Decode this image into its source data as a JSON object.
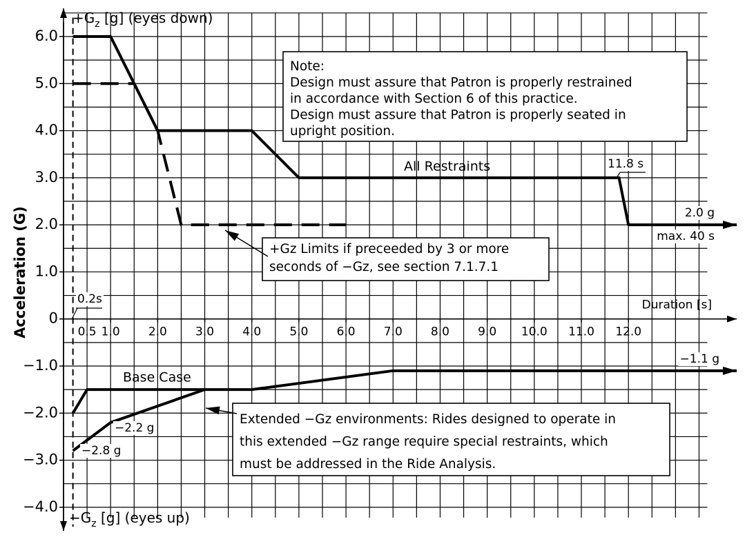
{
  "chart_data": {
    "type": "line",
    "y_label": "Acceleration (G)",
    "y_top_label": {
      "main": "+G",
      "sub": "z",
      "rest": " [g] (eyes down)"
    },
    "y_bottom_label": {
      "main": "−G",
      "sub": "z",
      "rest": " [g] (eyes up)"
    },
    "x_label": "Duration [s]",
    "xlim": [
      0,
      14.3
    ],
    "ylim": [
      -4.5,
      6.6
    ],
    "xticks": [
      0.5,
      {
        "value": 1,
        "label": "1.0"
      },
      {
        "value": 2,
        "label": "2.0"
      },
      {
        "value": 3,
        "label": "3.0"
      },
      {
        "value": 4,
        "label": "4.0"
      },
      {
        "value": 5,
        "label": "5.0"
      },
      {
        "value": 6,
        "label": "6.0"
      },
      {
        "value": 7,
        "label": "7.0"
      },
      {
        "value": 8,
        "label": "8.0"
      },
      {
        "value": 9,
        "label": "9.0"
      },
      {
        "value": 10,
        "label": "10.0"
      },
      {
        "value": 11,
        "label": "11.0"
      },
      {
        "value": 12,
        "label": "12.0"
      }
    ],
    "yticks": [
      {
        "value": -4,
        "label": "−4.0"
      },
      {
        "value": -3,
        "label": "−3.0"
      },
      {
        "value": -2,
        "label": "−2.0"
      },
      {
        "value": -1,
        "label": "−1.0"
      },
      0,
      {
        "value": 1,
        "label": "1.0"
      },
      {
        "value": 2,
        "label": "2.0"
      },
      {
        "value": 3,
        "label": "3.0"
      },
      {
        "value": 4,
        "label": "4.0"
      },
      {
        "value": 5,
        "label": "5.0"
      },
      {
        "value": 6,
        "label": "6.0"
      }
    ],
    "grid": true,
    "grid_step": 0.5,
    "reference_x": 0.2,
    "series": [
      {
        "name": "All Restraints",
        "color": "#000000",
        "style": "solid",
        "arrow_end": true,
        "x": [
          0.2,
          1,
          2,
          4,
          5,
          11.8,
          12,
          14.3
        ],
        "values": [
          6,
          6,
          4,
          4,
          3,
          3,
          2,
          2
        ]
      },
      {
        "color": "#000000",
        "style": "dashed",
        "arrow_end": false,
        "x": [
          0.2,
          1.5,
          2,
          2.5,
          6
        ],
        "values": [
          5,
          5,
          4,
          2,
          2
        ]
      },
      {
        "name": "Base Case",
        "color": "#000000",
        "style": "solid",
        "arrow_end": true,
        "x": [
          0.2,
          0.5,
          4,
          7,
          14.3
        ],
        "values": [
          -2,
          -1.5,
          -1.5,
          -1.1,
          -1.1
        ]
      },
      {
        "color": "#000000",
        "style": "solid",
        "arrow_end": false,
        "x": [
          0.2,
          1,
          3
        ],
        "values": [
          -2.8,
          -2.2,
          -1.5
        ]
      }
    ],
    "annotations": [
      {
        "text": "0.2s"
      },
      {
        "text": "11.8 s"
      },
      {
        "text": "2.0 g"
      },
      {
        "text": "max. 40 s"
      },
      {
        "text": "−1.1 g"
      },
      {
        "text": "−2.2 g"
      },
      {
        "text": "−2.8 g"
      }
    ],
    "notes": [
      {
        "lines": [
          "Note:",
          "Design must assure that Patron is properly restrained",
          "in accordance with Section 6 of this practice.",
          "Design must assure that Patron is properly seated in",
          "upright position."
        ]
      },
      {
        "lines": [
          "+Gz Limits if preceeded by 3 or more",
          "seconds of −Gz, see section 7.1.7.1"
        ]
      },
      {
        "lines": [
          "Extended −Gz environments: Rides designed to operate in",
          "this extended −Gz range require special restraints, which",
          "must be addressed in the Ride Analysis."
        ]
      }
    ]
  }
}
